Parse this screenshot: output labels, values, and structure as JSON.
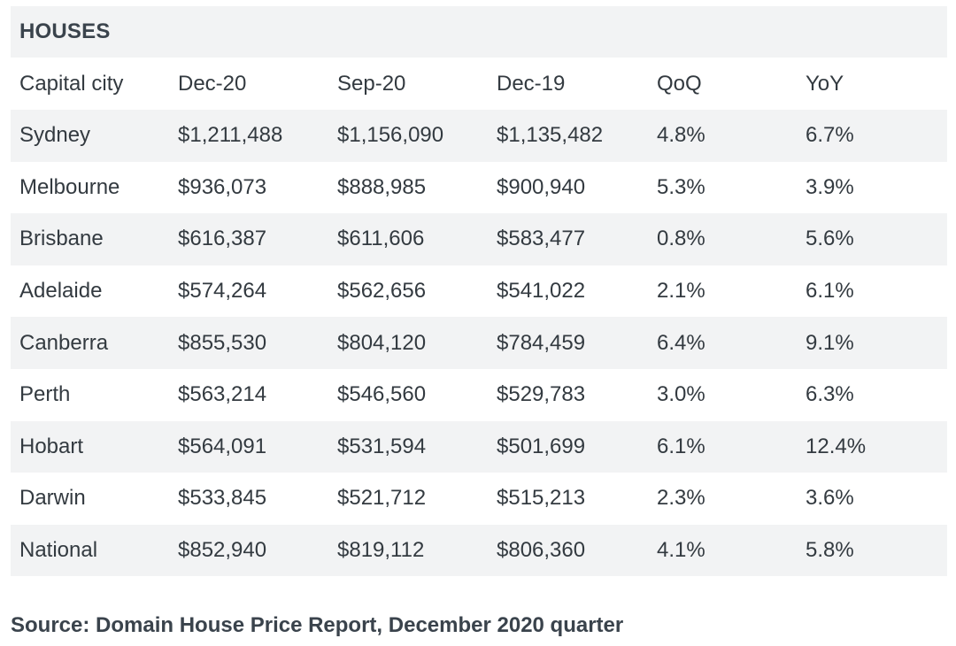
{
  "table": {
    "title": "HOUSES",
    "headers": [
      "Capital city",
      "Dec-20",
      "Sep-20",
      "Dec-19",
      "QoQ",
      "YoY"
    ],
    "rows": [
      [
        "Sydney",
        "$1,211,488",
        "$1,156,090",
        "$1,135,482",
        "4.8%",
        "6.7%"
      ],
      [
        "Melbourne",
        "$936,073",
        "$888,985",
        "$900,940",
        "5.3%",
        "3.9%"
      ],
      [
        "Brisbane",
        "$616,387",
        "$611,606",
        "$583,477",
        "0.8%",
        "5.6%"
      ],
      [
        "Adelaide",
        "$574,264",
        "$562,656",
        "$541,022",
        "2.1%",
        "6.1%"
      ],
      [
        "Canberra",
        "$855,530",
        "$804,120",
        "$784,459",
        "6.4%",
        "9.1%"
      ],
      [
        "Perth",
        "$563,214",
        "$546,560",
        "$529,783",
        "3.0%",
        "6.3%"
      ],
      [
        "Hobart",
        "$564,091",
        "$531,594",
        "$501,699",
        "6.1%",
        "12.4%"
      ],
      [
        "Darwin",
        "$533,845",
        "$521,712",
        "$515,213",
        "2.3%",
        "3.6%"
      ],
      [
        "National",
        "$852,940",
        "$819,112",
        "$806,360",
        "4.1%",
        "5.8%"
      ]
    ]
  },
  "source": "Source: Domain House Price Report, December 2020 quarter",
  "colors": {
    "stripe": "#f2f3f4",
    "text": "#333a40"
  }
}
